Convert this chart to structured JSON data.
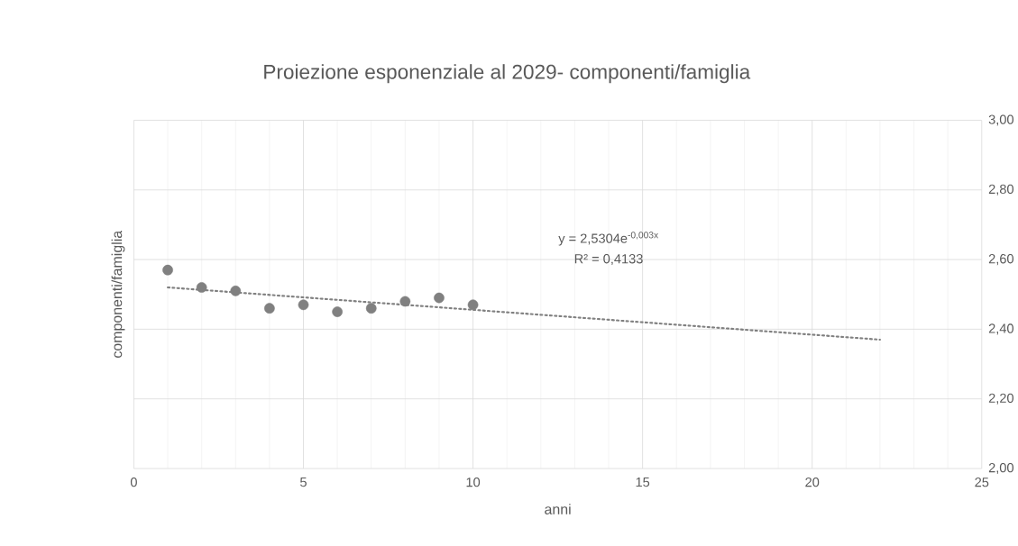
{
  "chart_data": {
    "type": "scatter",
    "title": "Proiezione esponenziale al 2029- componenti/famiglia",
    "xlabel": "anni",
    "ylabel": "componenti/famiglia",
    "annotations": [
      "y = 2,5304e$^{-0,003x}$",
      "R² = 0,4133"
    ],
    "series": [
      {
        "color": "#808080",
        "marker": "circle",
        "x": [
          1,
          2,
          3,
          4,
          5,
          6,
          7,
          8,
          9,
          10
        ],
        "values": [
          2.57,
          2.52,
          2.51,
          2.46,
          2.47,
          2.45,
          2.46,
          2.48,
          2.49,
          2.47
        ]
      },
      {
        "type": "line",
        "color": "#808080",
        "line_style": "dotted",
        "x": [
          1,
          22
        ],
        "values": [
          2.52,
          2.37
        ]
      }
    ],
    "xlim": [
      0,
      25
    ],
    "ylim": [
      2.0,
      3.0
    ],
    "xticks": [
      0,
      5,
      10,
      15,
      20,
      25
    ],
    "yticks": [
      {
        "value": 2.0,
        "label": "2,00"
      },
      {
        "value": 2.2,
        "label": "2,20"
      },
      {
        "value": 2.4,
        "label": "2,40"
      },
      {
        "value": 2.6,
        "label": "2,60"
      },
      {
        "value": 2.8,
        "label": "2,80"
      },
      {
        "value": 3.0,
        "label": "3,00"
      }
    ],
    "grid": true
  }
}
